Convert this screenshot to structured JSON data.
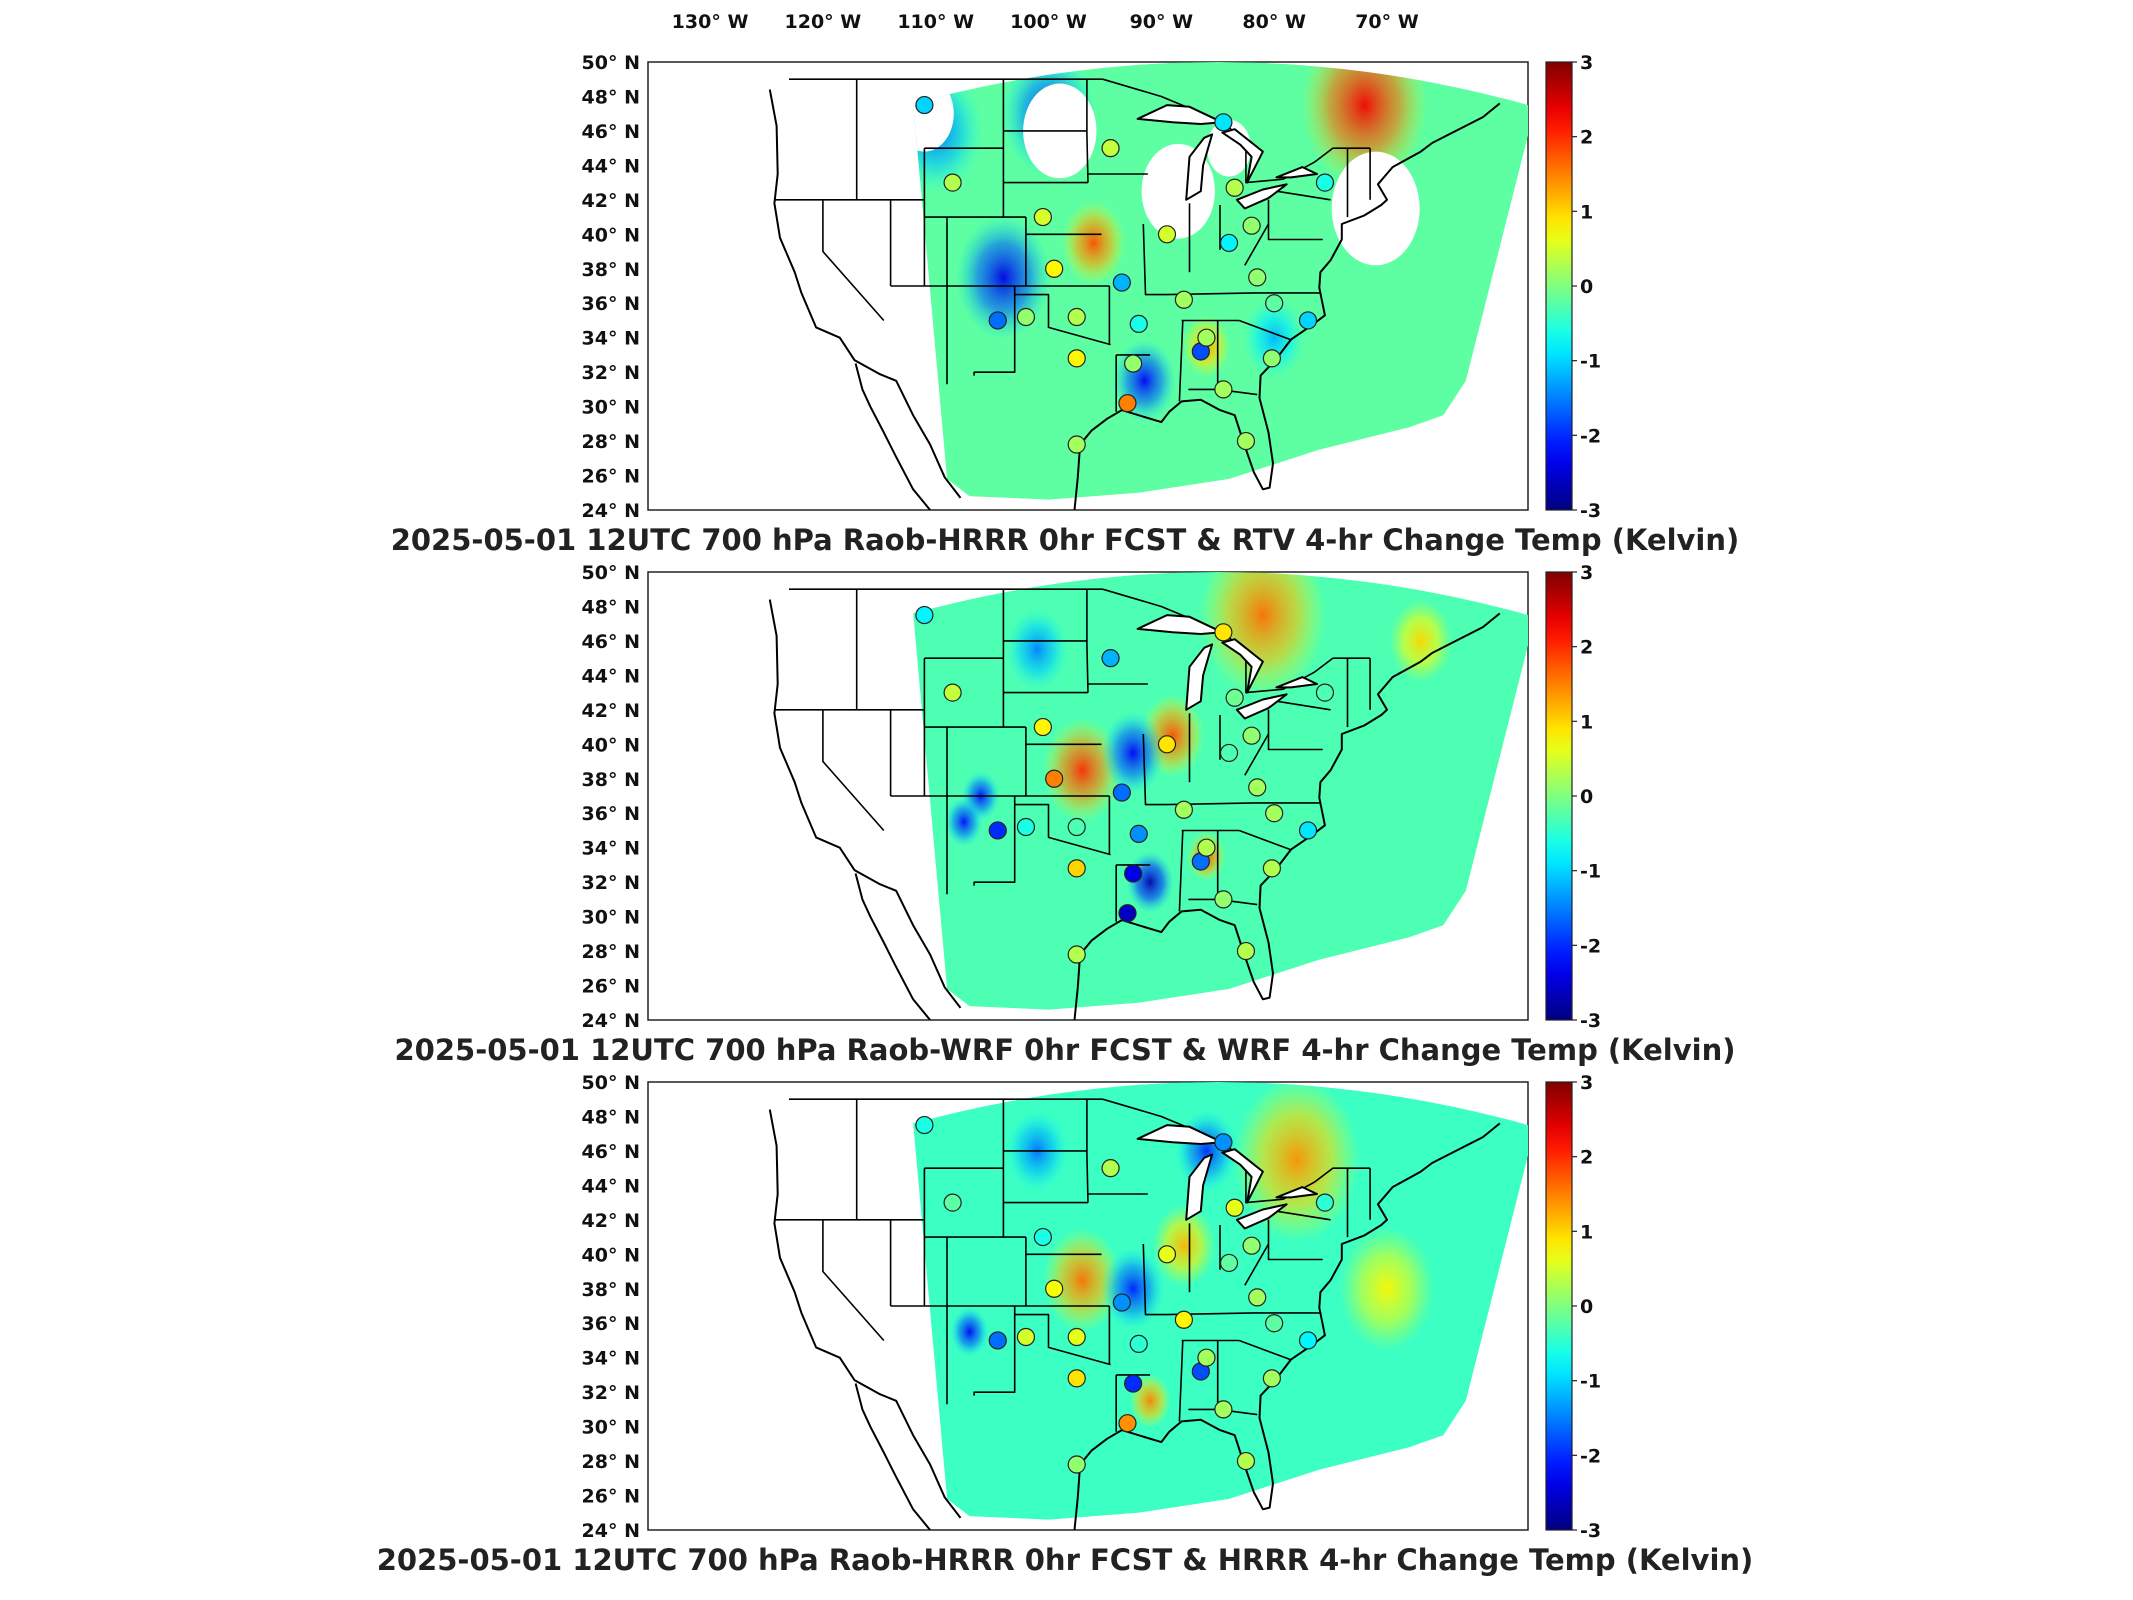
{
  "top_axis": {
    "lon_labels": [
      "130° W",
      "120° W",
      "110° W",
      "100° W",
      "90° W",
      "80° W",
      "70° W"
    ],
    "lon_values": [
      -130,
      -120,
      -110,
      -100,
      -90,
      -80,
      -70
    ]
  },
  "lat_axis": {
    "lat_labels": [
      "50° N",
      "48° N",
      "46° N",
      "44° N",
      "42° N",
      "40° N",
      "38° N",
      "36° N",
      "34° N",
      "32° N",
      "30° N",
      "28° N",
      "26° N",
      "24° N"
    ],
    "lat_values": [
      50,
      48,
      46,
      44,
      42,
      40,
      38,
      36,
      34,
      32,
      30,
      28,
      26,
      24
    ]
  },
  "colorbar": {
    "ticks": [
      "3",
      "2",
      "1",
      "0",
      "-1",
      "-2",
      "-3"
    ],
    "min": -3,
    "max": 3,
    "colormap": "jet"
  },
  "panels": [
    {
      "id": "hrrr-rtv",
      "title": "2025-05-01 12UTC 700 hPa Raob-HRRR 0hr FCST & RTV 4-hr Change Temp (Kelvin)",
      "background_tone": -0.2,
      "blobs": [
        {
          "lon": -72,
          "lat": 47.5,
          "val": 2.3,
          "r": 4
        },
        {
          "lon": -104,
          "lat": 37.5,
          "val": -2.4,
          "r": 3
        },
        {
          "lon": -91.5,
          "lat": 31.5,
          "val": -2.3,
          "r": 2
        },
        {
          "lon": -96,
          "lat": 39.5,
          "val": 1.8,
          "r": 2
        },
        {
          "lon": -110,
          "lat": 46,
          "val": -1.6,
          "r": 3
        },
        {
          "lon": -100,
          "lat": 47,
          "val": -2.0,
          "r": 3
        },
        {
          "lon": -86,
          "lat": 33.5,
          "val": 1.3,
          "r": 1.5
        },
        {
          "lon": -80,
          "lat": 34,
          "val": -1.2,
          "r": 2
        }
      ],
      "missing_regions": [
        {
          "lon": -111,
          "lat": 47,
          "r": 2
        },
        {
          "lon": -99,
          "lat": 46,
          "r": 2.5
        },
        {
          "lon": -88.5,
          "lat": 42.5,
          "r": 2.5
        },
        {
          "lon": -71,
          "lat": 41.5,
          "r": 3
        },
        {
          "lon": -84,
          "lat": 45,
          "r": 1.5
        }
      ]
    },
    {
      "id": "wrf",
      "title": "2025-05-01 12UTC 700 hPa Raob-WRF 0hr FCST & WRF 4-hr Change Temp (Kelvin)",
      "background_tone": -0.3,
      "blobs": [
        {
          "lon": -81,
          "lat": 47.5,
          "val": 1.6,
          "r": 4
        },
        {
          "lon": -97,
          "lat": 38.5,
          "val": 2.0,
          "r": 2.5
        },
        {
          "lon": -89,
          "lat": 40.5,
          "val": 1.8,
          "r": 2
        },
        {
          "lon": -92.5,
          "lat": 39.5,
          "val": -2.3,
          "r": 2
        },
        {
          "lon": -106,
          "lat": 37,
          "val": -2.2,
          "r": 1.2
        },
        {
          "lon": -107.5,
          "lat": 35.5,
          "val": -2.2,
          "r": 1.2
        },
        {
          "lon": -91,
          "lat": 32,
          "val": -2.7,
          "r": 1.5
        },
        {
          "lon": -86,
          "lat": 33.5,
          "val": 1.8,
          "r": 1.2
        },
        {
          "lon": -67,
          "lat": 46,
          "val": 1.0,
          "r": 2
        },
        {
          "lon": -101,
          "lat": 45.5,
          "val": -1.5,
          "r": 2
        }
      ],
      "missing_regions": []
    },
    {
      "id": "hrrr",
      "title": "2025-05-01 12UTC 700 hPa Raob-HRRR 0hr FCST & HRRR 4-hr Change Temp (Kelvin)",
      "background_tone": -0.4,
      "blobs": [
        {
          "lon": -78,
          "lat": 45.5,
          "val": 1.4,
          "r": 4
        },
        {
          "lon": -97,
          "lat": 38.5,
          "val": 1.6,
          "r": 2.5
        },
        {
          "lon": -88,
          "lat": 40.5,
          "val": 1.2,
          "r": 2
        },
        {
          "lon": -92.5,
          "lat": 38,
          "val": -2.1,
          "r": 2
        },
        {
          "lon": -107,
          "lat": 35.5,
          "val": -2.3,
          "r": 1.2
        },
        {
          "lon": -91,
          "lat": 31.5,
          "val": 1.5,
          "r": 1.3
        },
        {
          "lon": -86,
          "lat": 46,
          "val": -2.0,
          "r": 2
        },
        {
          "lon": -101,
          "lat": 46,
          "val": -1.6,
          "r": 2
        },
        {
          "lon": -70,
          "lat": 38,
          "val": 0.8,
          "r": 3
        }
      ],
      "missing_regions": []
    }
  ],
  "raob_sites": [
    {
      "lon": -111.0,
      "lat": 47.5,
      "v": [
        -1.0,
        -0.8,
        -0.6
      ]
    },
    {
      "lon": -108.5,
      "lat": 43.0,
      "v": [
        0.3,
        0.4,
        -0.2
      ]
    },
    {
      "lon": -100.5,
      "lat": 41.0,
      "v": [
        0.5,
        0.8,
        -0.6
      ]
    },
    {
      "lon": -94.5,
      "lat": 45.0,
      "v": [
        0.4,
        -1.2,
        0.3
      ]
    },
    {
      "lon": -104.5,
      "lat": 35.0,
      "v": [
        -1.6,
        -2.0,
        -1.6
      ]
    },
    {
      "lon": -102.0,
      "lat": 35.2,
      "v": [
        0.1,
        -0.6,
        0.5
      ]
    },
    {
      "lon": -99.5,
      "lat": 38.0,
      "v": [
        0.8,
        1.5,
        0.7
      ]
    },
    {
      "lon": -97.5,
      "lat": 35.2,
      "v": [
        0.3,
        -0.3,
        0.6
      ]
    },
    {
      "lon": -97.5,
      "lat": 32.8,
      "v": [
        0.8,
        1.0,
        0.9
      ]
    },
    {
      "lon": -97.5,
      "lat": 27.8,
      "v": [
        0.2,
        0.3,
        0.1
      ]
    },
    {
      "lon": -93.5,
      "lat": 37.2,
      "v": [
        -1.2,
        -1.6,
        -1.4
      ]
    },
    {
      "lon": -92.0,
      "lat": 34.8,
      "v": [
        -0.6,
        -1.4,
        -0.5
      ]
    },
    {
      "lon": -92.5,
      "lat": 32.5,
      "v": [
        0.1,
        -2.4,
        -2.0
      ]
    },
    {
      "lon": -93.0,
      "lat": 30.2,
      "v": [
        1.5,
        -2.6,
        1.4
      ]
    },
    {
      "lon": -89.5,
      "lat": 40.0,
      "v": [
        0.5,
        0.9,
        0.6
      ]
    },
    {
      "lon": -88.0,
      "lat": 36.2,
      "v": [
        0.2,
        0.2,
        0.8
      ]
    },
    {
      "lon": -86.5,
      "lat": 33.2,
      "v": [
        -1.8,
        -1.6,
        -1.8
      ]
    },
    {
      "lon": -86.0,
      "lat": 34.0,
      "v": [
        0.2,
        0.3,
        0.2
      ]
    },
    {
      "lon": -84.5,
      "lat": 46.5,
      "v": [
        -0.9,
        0.9,
        -1.4
      ]
    },
    {
      "lon": -83.5,
      "lat": 42.7,
      "v": [
        0.3,
        -0.1,
        0.6
      ]
    },
    {
      "lon": -84.0,
      "lat": 39.5,
      "v": [
        -0.8,
        -0.3,
        -0.2
      ]
    },
    {
      "lon": -82.0,
      "lat": 40.5,
      "v": [
        0.1,
        0.1,
        0.1
      ]
    },
    {
      "lon": -81.5,
      "lat": 37.5,
      "v": [
        0.1,
        0.2,
        0.2
      ]
    },
    {
      "lon": -80.0,
      "lat": 36.0,
      "v": [
        -0.2,
        0.2,
        -0.2
      ]
    },
    {
      "lon": -80.2,
      "lat": 32.8,
      "v": [
        0.1,
        0.3,
        0.2
      ]
    },
    {
      "lon": -82.5,
      "lat": 28.0,
      "v": [
        0.2,
        0.3,
        0.3
      ]
    },
    {
      "lon": -77.0,
      "lat": 35.0,
      "v": [
        -1.0,
        -0.9,
        -0.8
      ]
    },
    {
      "lon": -75.5,
      "lat": 43.0,
      "v": [
        -0.6,
        -0.3,
        -0.5
      ]
    },
    {
      "lon": -84.5,
      "lat": 31.0,
      "v": [
        0.2,
        0.1,
        0.2
      ]
    }
  ]
}
